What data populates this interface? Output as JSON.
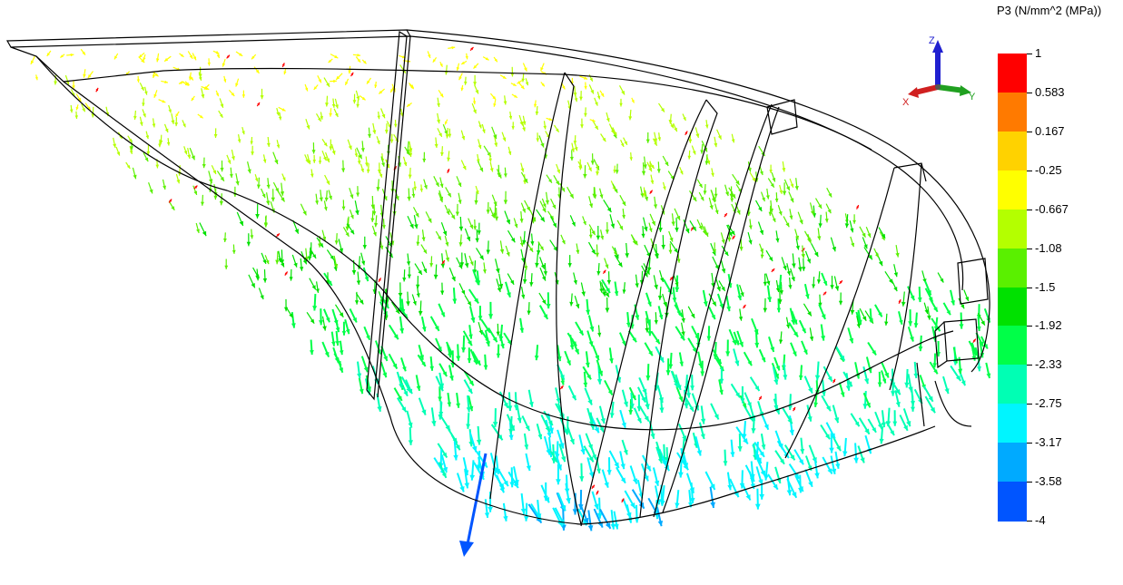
{
  "legend": {
    "title": "P3 (N/mm^2 (MPa))",
    "labels": [
      "1",
      "0.583",
      "0.167",
      "-0.25",
      "-0.667",
      "-1.08",
      "-1.5",
      "-1.92",
      "-2.33",
      "-2.75",
      "-3.17",
      "-3.58",
      "-4"
    ],
    "colors": [
      "#ff0000",
      "#ff7a00",
      "#ffd200",
      "#ffff00",
      "#b4ff00",
      "#5af000",
      "#00e100",
      "#00ff48",
      "#00ffb4",
      "#00f5ff",
      "#00aaff",
      "#0055ff",
      "#0000ff"
    ]
  },
  "triad": {
    "z_label": "Z",
    "x_label": "X",
    "y_label": "Y",
    "z_color": "#2020d0",
    "x_color": "#d02020",
    "y_color": "#20a020"
  }
}
